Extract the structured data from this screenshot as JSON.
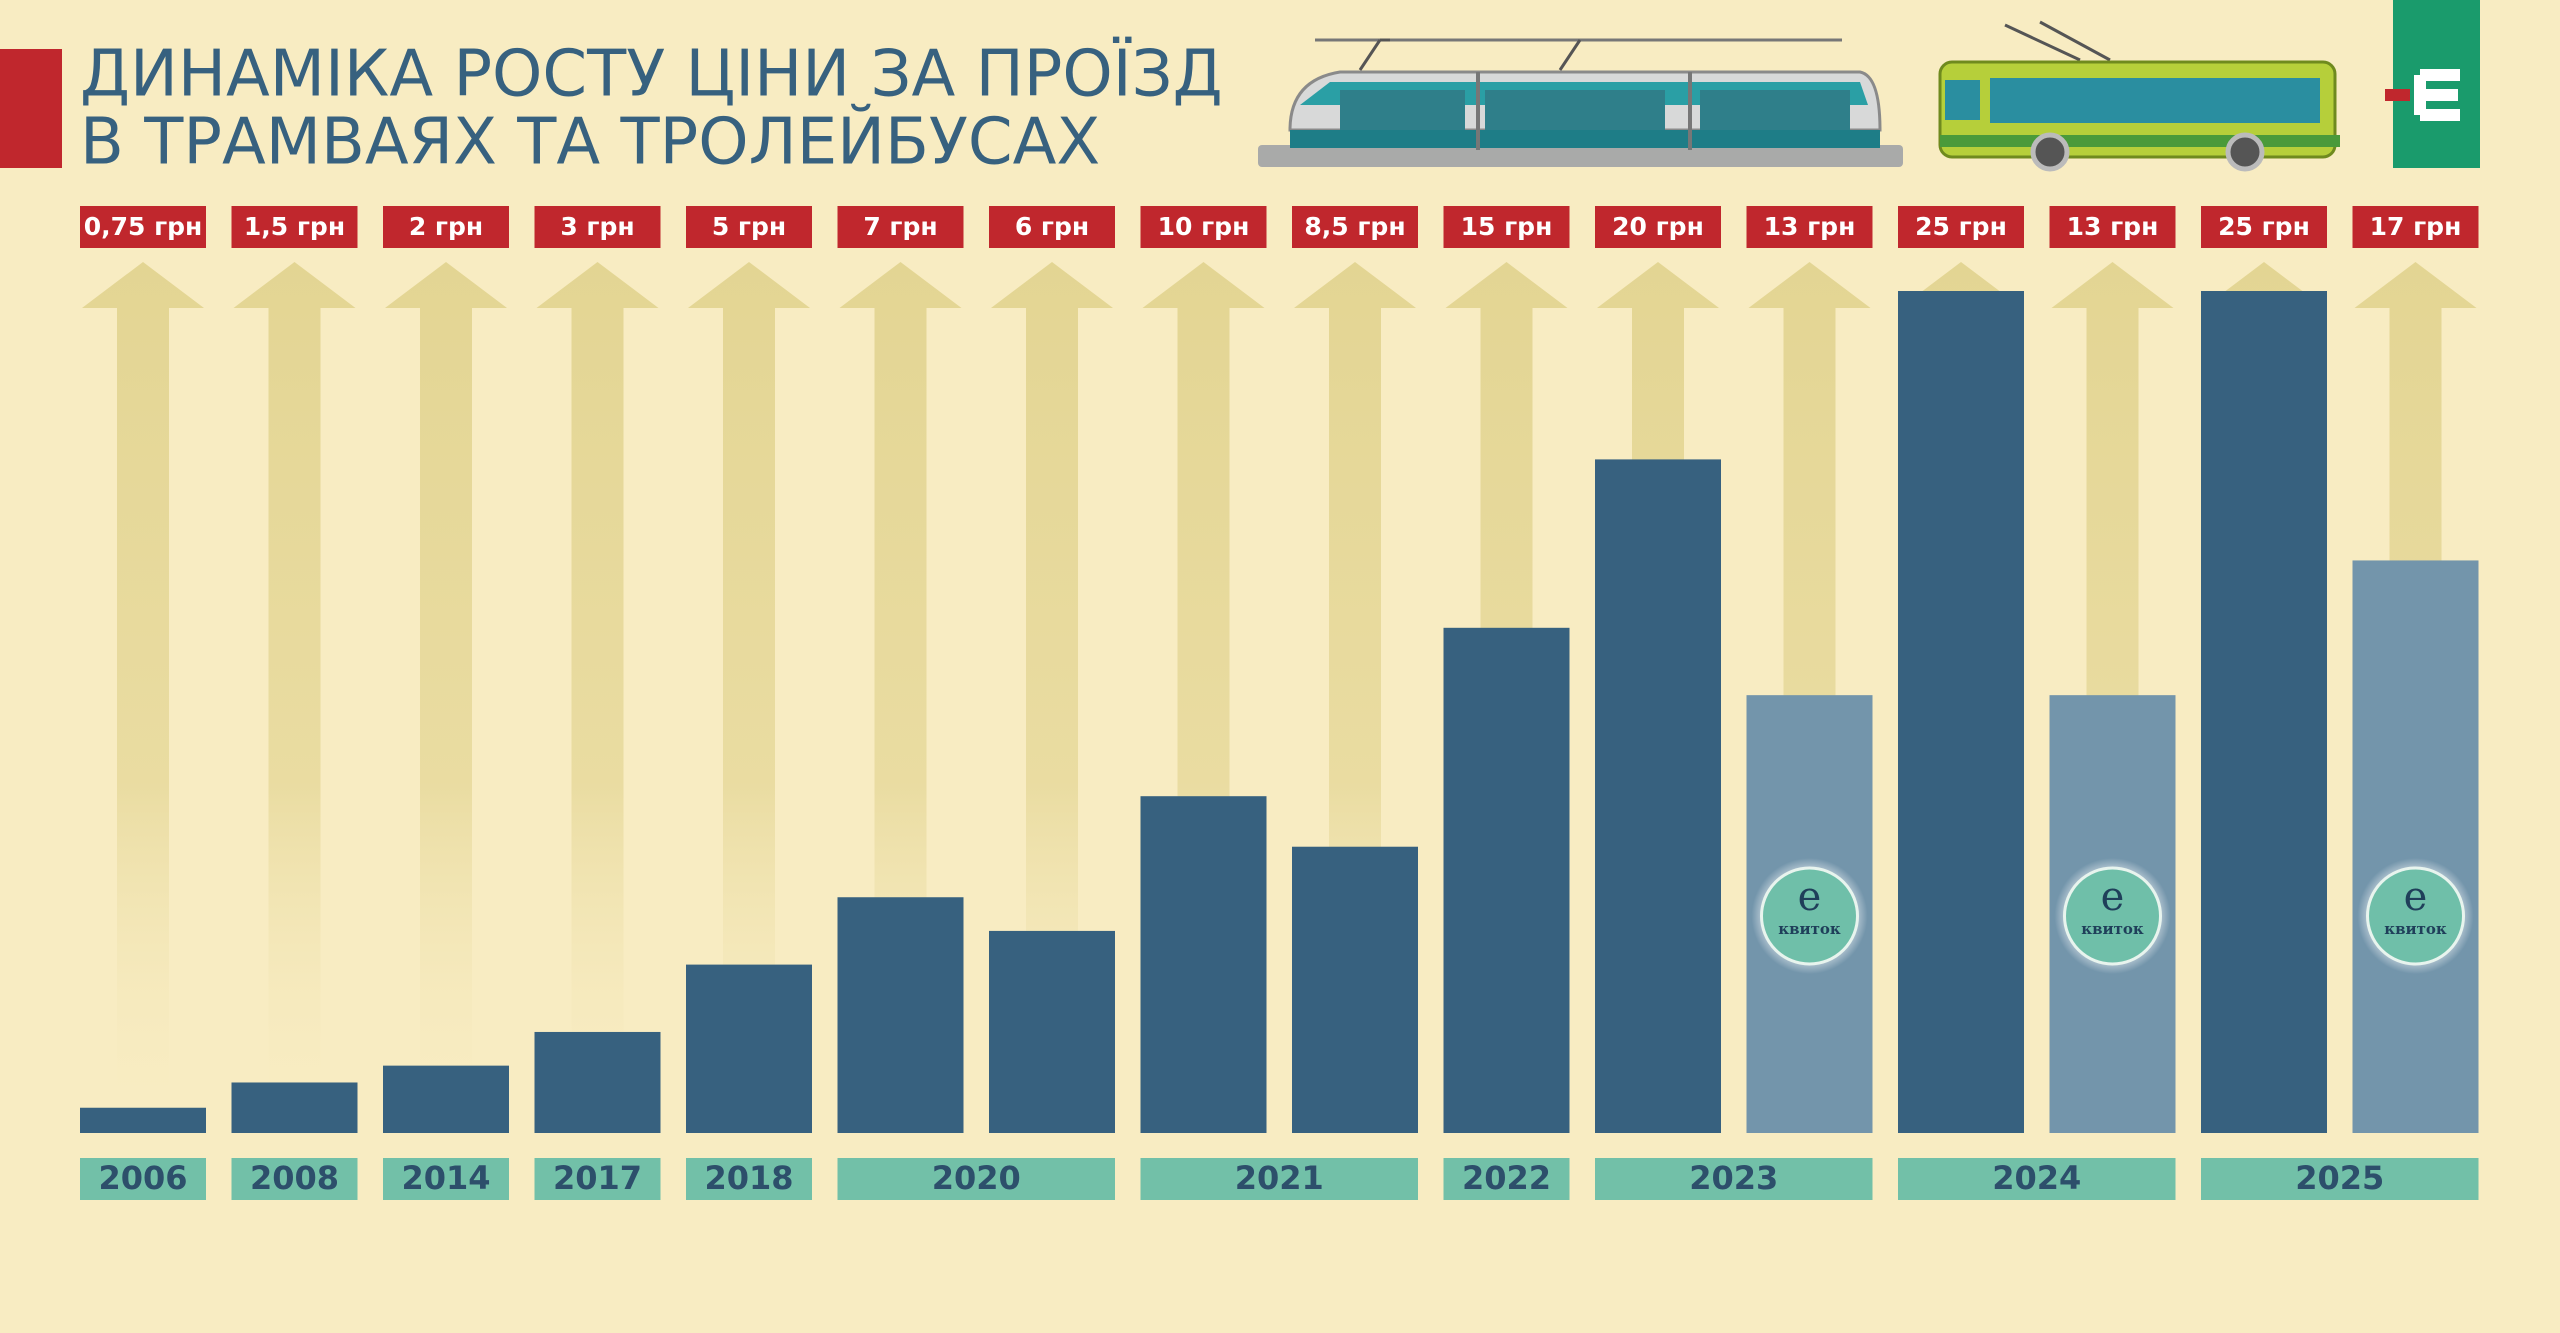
{
  "chart_data": {
    "type": "bar",
    "title": [
      "ДИНАМІКА РОСТУ ЦІНИ ЗА ПРОЇЗД",
      "В ТРАМВАЯХ ТА ТРОЛЕЙБУСАХ"
    ],
    "categories": [
      "2006",
      "2008",
      "2014",
      "2017",
      "2018",
      "2020",
      null,
      "2021",
      null,
      "2022",
      "2023",
      null,
      "2024",
      null,
      "2025",
      null
    ],
    "values": [
      0.75,
      1.5,
      2,
      3,
      5,
      7,
      6,
      10,
      8.5,
      15,
      20,
      13,
      25,
      13,
      25,
      17
    ],
    "value_labels": [
      "0,75 грн",
      "1,5 грн",
      "2 грн",
      "3 грн",
      "5 грн",
      "7 грн",
      "6 грн",
      "10 грн",
      "8,5 грн",
      "15 грн",
      "20 грн",
      "13 грн",
      "25 грн",
      "13 грн",
      "25 грн",
      "17 грн"
    ],
    "colors": [
      "#37617f",
      "#37617f",
      "#37617f",
      "#37617f",
      "#37617f",
      "#37617f",
      "#37617f",
      "#37617f",
      "#37617f",
      "#37617f",
      "#37617f",
      "#7395ab",
      "#37617f",
      "#7395ab",
      "#37617f",
      "#7395ab"
    ],
    "e_ticket": [
      false,
      false,
      false,
      false,
      false,
      false,
      false,
      false,
      false,
      false,
      false,
      true,
      false,
      true,
      false,
      true
    ],
    "badge": {
      "letter": "е",
      "text": "квиток"
    },
    "ylim": [
      0,
      25
    ]
  }
}
